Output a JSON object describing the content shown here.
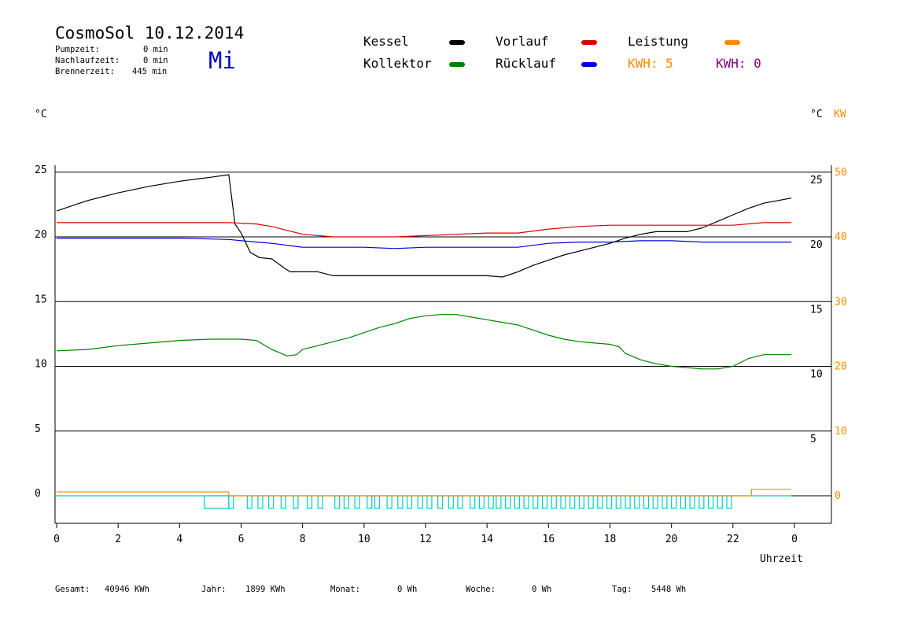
{
  "header": {
    "title": "CosmoSol 10.12.2014",
    "day": "Mi",
    "info": [
      {
        "label": "Pumpzeit:",
        "value": "0 min"
      },
      {
        "label": "Nachlaufzeit:",
        "value": "0 min"
      },
      {
        "label": "Brennerzeit:",
        "value": "445 min"
      }
    ]
  },
  "legend": {
    "kessel": "Kessel",
    "kollektor": "Kollektor",
    "vorlauf": "Vorlauf",
    "ruecklauf": "Rücklauf",
    "leistung": "Leistung",
    "kwh1": "KWH: 5",
    "kwh2": "KWH: 0"
  },
  "units": {
    "left": "°C",
    "right": "°C",
    "right_kw": "KW",
    "x": "Uhrzeit"
  },
  "footer": {
    "gesamt_label": "Gesamt:",
    "gesamt_value": "40946 KWh",
    "jahr_label": "Jahr:",
    "jahr_value": "1899 KWh",
    "monat_label": "Monat:",
    "monat_value": "0 Wh",
    "woche_label": "Woche:",
    "woche_value": "0 Wh",
    "tag_label": "Tag:",
    "tag_value": "5448 Wh"
  },
  "colors": {
    "kessel": "#000000",
    "vorlauf": "#dd0000",
    "ruecklauf": "#0000dd",
    "kollektor": "#008000",
    "leistung": "#ff8800",
    "pump": "#00cccc",
    "kwh2": "#800080"
  },
  "chart_data": {
    "type": "line",
    "xlabel": "Uhrzeit",
    "ylabel": "°C",
    "x_ticks": [
      "0",
      "2",
      "4",
      "6",
      "8",
      "10",
      "12",
      "14",
      "16",
      "18",
      "20",
      "22",
      "0"
    ],
    "y_left_ticks": [
      "25",
      "20",
      "15",
      "10",
      "5",
      "0"
    ],
    "y_right_ticks": [
      "25",
      "20",
      "15",
      "10",
      "5"
    ],
    "y_kw_ticks": [
      "50",
      "40",
      "30",
      "20",
      "10",
      "0"
    ],
    "xlim": [
      0,
      24
    ],
    "ylim": [
      -2.3,
      25.5
    ],
    "series": [
      {
        "name": "Kessel",
        "key": "kessel",
        "x": [
          0,
          1,
          2,
          3,
          4,
          5,
          5.6,
          5.8,
          6.0,
          6.3,
          6.6,
          7.0,
          7.4,
          7.6,
          8,
          8.5,
          9,
          10,
          11,
          12,
          13,
          14,
          14.5,
          15,
          15.5,
          16,
          16.5,
          17,
          17.5,
          18,
          18.5,
          19,
          19.5,
          20,
          20.5,
          21,
          21.5,
          22,
          22.5,
          23,
          23.9
        ],
        "y": [
          22.0,
          22.8,
          23.4,
          23.9,
          24.3,
          24.6,
          24.8,
          21.0,
          20.3,
          18.8,
          18.4,
          18.3,
          17.6,
          17.3,
          17.3,
          17.3,
          17.0,
          17.0,
          17.0,
          17.0,
          17.0,
          17.0,
          16.9,
          17.3,
          17.8,
          18.2,
          18.6,
          18.9,
          19.2,
          19.5,
          19.9,
          20.2,
          20.4,
          20.4,
          20.4,
          20.7,
          21.2,
          21.7,
          22.2,
          22.6,
          23.0
        ]
      },
      {
        "name": "Vorlauf",
        "key": "vorlauf",
        "x": [
          0,
          2,
          4,
          5.6,
          6.5,
          7,
          7.5,
          8,
          9,
          10,
          11,
          12,
          13,
          14,
          15,
          16,
          17,
          18,
          19,
          20,
          21,
          22,
          23,
          23.9
        ],
        "y": [
          21.1,
          21.1,
          21.1,
          21.1,
          21.0,
          20.8,
          20.5,
          20.2,
          20.0,
          20.0,
          20.0,
          20.1,
          20.2,
          20.3,
          20.3,
          20.6,
          20.8,
          20.9,
          20.9,
          20.9,
          20.9,
          20.9,
          21.1,
          21.1
        ]
      },
      {
        "name": "Rücklauf",
        "key": "ruecklauf",
        "x": [
          0,
          2,
          4,
          5.6,
          6.5,
          7,
          8,
          9,
          10,
          11,
          12,
          13,
          14,
          15,
          16,
          17,
          18,
          19,
          20,
          21,
          22,
          23,
          23.9
        ],
        "y": [
          19.9,
          19.9,
          19.9,
          19.8,
          19.6,
          19.5,
          19.2,
          19.2,
          19.2,
          19.1,
          19.2,
          19.2,
          19.2,
          19.2,
          19.5,
          19.6,
          19.6,
          19.7,
          19.7,
          19.6,
          19.6,
          19.6,
          19.6
        ]
      },
      {
        "name": "Kollektor",
        "key": "kollektor",
        "x": [
          0,
          1,
          2,
          3,
          4,
          5,
          5.6,
          6,
          6.5,
          7,
          7.5,
          7.8,
          8,
          8.5,
          9,
          9.5,
          10,
          10.5,
          11,
          11.5,
          12,
          12.5,
          13,
          13.5,
          14,
          14.5,
          15,
          15.5,
          16,
          16.5,
          17,
          17.5,
          18,
          18.3,
          18.5,
          19,
          19.5,
          20,
          20.5,
          21,
          21.5,
          22,
          22.5,
          23,
          23.5,
          23.9
        ],
        "y": [
          11.2,
          11.3,
          11.6,
          11.8,
          12.0,
          12.1,
          12.1,
          12.1,
          12.0,
          11.3,
          10.8,
          10.9,
          11.3,
          11.6,
          11.9,
          12.2,
          12.6,
          13.0,
          13.3,
          13.7,
          13.9,
          14.0,
          14.0,
          13.8,
          13.6,
          13.4,
          13.2,
          12.8,
          12.4,
          12.1,
          11.9,
          11.8,
          11.7,
          11.5,
          11.0,
          10.5,
          10.2,
          10.0,
          9.9,
          9.8,
          9.8,
          10.0,
          10.6,
          10.9,
          10.9,
          10.9
        ]
      },
      {
        "name": "Leistung",
        "key": "leistung",
        "x": [
          0,
          5.6,
          5.6,
          22.6,
          22.6,
          23.0,
          23.9
        ],
        "y": [
          0.3,
          0.3,
          0,
          0,
          0.5,
          0.5,
          0.5
        ]
      }
    ],
    "pump_cycles_hours": [
      4.8,
      5.6,
      6.2,
      6.55,
      6.9,
      7.3,
      7.7,
      8.15,
      8.5,
      9.05,
      9.35,
      9.7,
      10.1,
      10.35,
      10.75,
      11.1,
      11.4,
      11.75,
      12.05,
      12.4,
      12.75,
      13.05,
      13.45,
      13.75,
      14.05,
      14.3,
      14.6,
      14.9,
      15.2,
      15.5,
      15.8,
      16.1,
      16.4,
      16.7,
      17.0,
      17.3,
      17.6,
      17.9,
      18.2,
      18.5,
      18.8,
      19.1,
      19.4,
      19.7,
      20.0,
      20.3,
      20.6,
      20.9,
      21.2,
      21.5,
      21.8
    ]
  }
}
